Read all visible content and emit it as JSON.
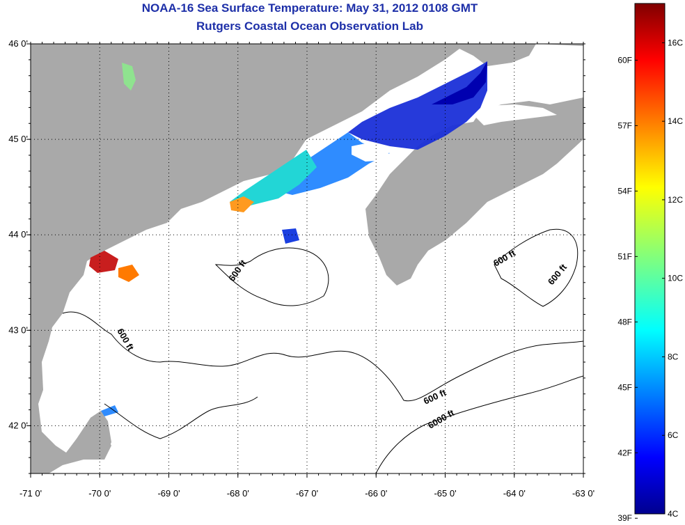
{
  "title": "NOAA-16 Sea Surface Temperature:  May 31, 2012 0108 GMT",
  "subtitle": "Rutgers Coastal Ocean Observation Lab",
  "map": {
    "lon_range": [
      -71,
      -63
    ],
    "lat_range": [
      41.5,
      46
    ],
    "x_ticks": [
      "-71 0'",
      "-70 0'",
      "-69 0'",
      "-68 0'",
      "-67 0'",
      "-66 0'",
      "-65 0'",
      "-64 0'",
      "-63 0'"
    ],
    "y_ticks": [
      "46 0'",
      "45 0'",
      "44 0'",
      "43 0'",
      "42 0'"
    ],
    "grid": "dotted",
    "colors": {
      "land": "#a9a9a9",
      "water": "#ffffff",
      "no_data": "#ffffff",
      "contour": "#000000"
    },
    "contour_labels": [
      "600 ft",
      "600 ft",
      "600 ft",
      "600 ft",
      "600 ft",
      "6000 ft"
    ]
  },
  "colorbar": {
    "fahrenheit_labels": [
      "60F",
      "57F",
      "54F",
      "51F",
      "48F",
      "45F",
      "42F",
      "39F"
    ],
    "celsius_labels": [
      "16C",
      "14C",
      "12C",
      "10C",
      "8C",
      "6C",
      "4C"
    ],
    "range_c": [
      4,
      17
    ],
    "colormap": "jet"
  }
}
